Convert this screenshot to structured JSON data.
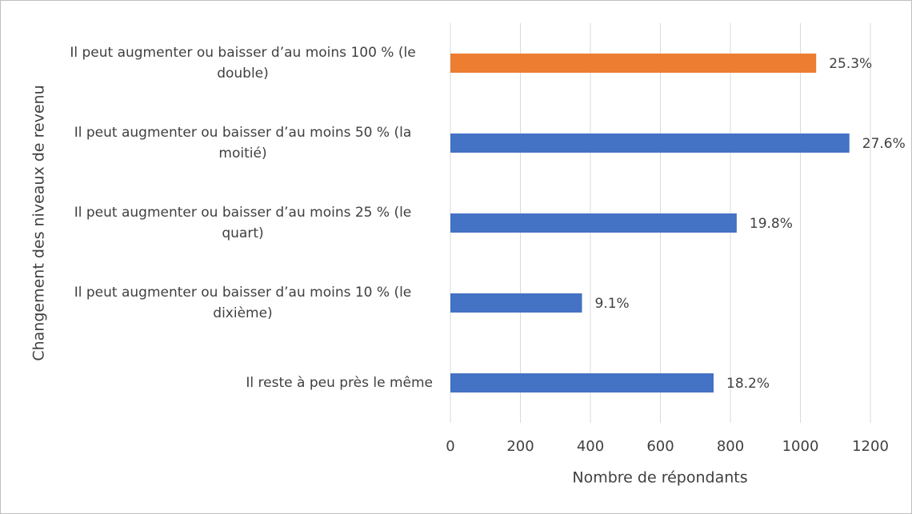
{
  "chart_data": {
    "type": "bar",
    "orientation": "horizontal",
    "x_label": "Nombre de répondants",
    "y_label": "Changement des niveaux de revenu",
    "categories": [
      "Il peut augmenter ou baisser d’au moins 100 % (le double)",
      "Il peut augmenter ou baisser d’au moins 50 % (la moitié)",
      "Il peut augmenter ou baisser d’au moins 25 % (le quart)",
      "Il peut augmenter ou baisser d’au moins 10 % (le dixième)",
      "Il reste à peu près le même"
    ],
    "values": [
      1045,
      1140,
      818,
      376,
      752
    ],
    "value_labels": [
      "25.3%",
      "27.6%",
      "19.8%",
      "9.1%",
      "18.2%"
    ],
    "colors": [
      "#ed7d31",
      "#4472c4",
      "#4472c4",
      "#4472c4",
      "#4472c4"
    ],
    "xlim": [
      0,
      1200
    ],
    "xticks": [
      0,
      200,
      400,
      600,
      800,
      1000,
      1200
    ],
    "grid": true
  }
}
